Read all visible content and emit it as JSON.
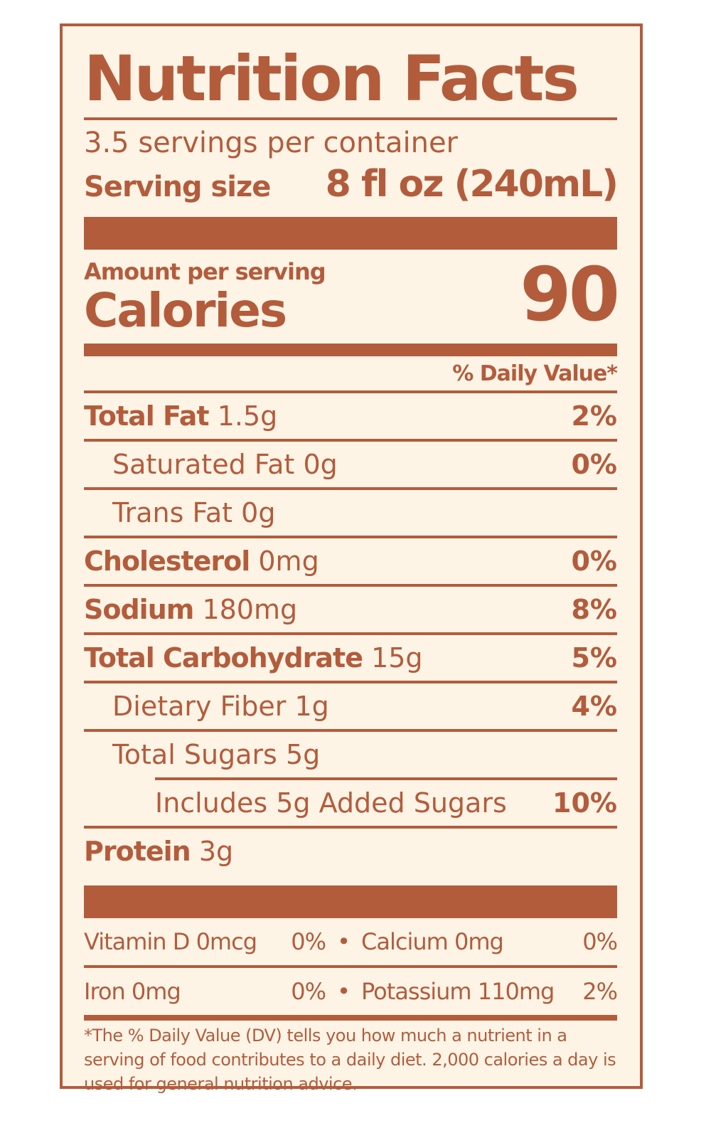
{
  "label": {
    "title": "Nutrition Facts",
    "servings_per_container": "3.5 servings per container",
    "serving_size_label": "Serving size",
    "serving_size_value": "8 fl oz (240mL)",
    "amount_per_serving": "Amount per serving",
    "calories_label": "Calories",
    "calories_value": "90",
    "daily_value_header": "% Daily Value*",
    "nutrients": [
      {
        "name": "Total Fat",
        "amount": "1.5g",
        "dv": "2%"
      },
      {
        "name": "Saturated Fat",
        "amount": "0g",
        "dv": "0%"
      },
      {
        "name": "Trans Fat",
        "amount": "0g",
        "dv": ""
      },
      {
        "name": "Cholesterol",
        "amount": "0mg",
        "dv": "0%"
      },
      {
        "name": "Sodium",
        "amount": "180mg",
        "dv": "8%"
      },
      {
        "name": "Total Carbohydrate",
        "amount": "15g",
        "dv": "5%"
      },
      {
        "name": "Dietary Fiber",
        "amount": "1g",
        "dv": "4%"
      },
      {
        "name": "Total Sugars",
        "amount": "5g",
        "dv": ""
      },
      {
        "name": "Includes 5g Added Sugars",
        "amount": "",
        "dv": "10%"
      },
      {
        "name": "Protein",
        "amount": "3g",
        "dv": ""
      }
    ],
    "micronutrients": [
      {
        "left_name": "Vitamin D 0mcg",
        "left_dv": "0%",
        "separator": "•",
        "right_name": "Calcium 0mg",
        "right_dv": "0%"
      },
      {
        "left_name": "Iron 0mg",
        "left_dv": "0%",
        "separator": "•",
        "right_name": "Potassium 110mg",
        "right_dv": "2%"
      }
    ],
    "footnote": "*The % Daily Value (DV) tells you how much a nutrient in a serving of food contributes to a daily diet. 2,000 calories a day is used for general nutrition advice."
  },
  "colors": {
    "ink": "#b35c3c",
    "paper": "#fdf4e6"
  }
}
